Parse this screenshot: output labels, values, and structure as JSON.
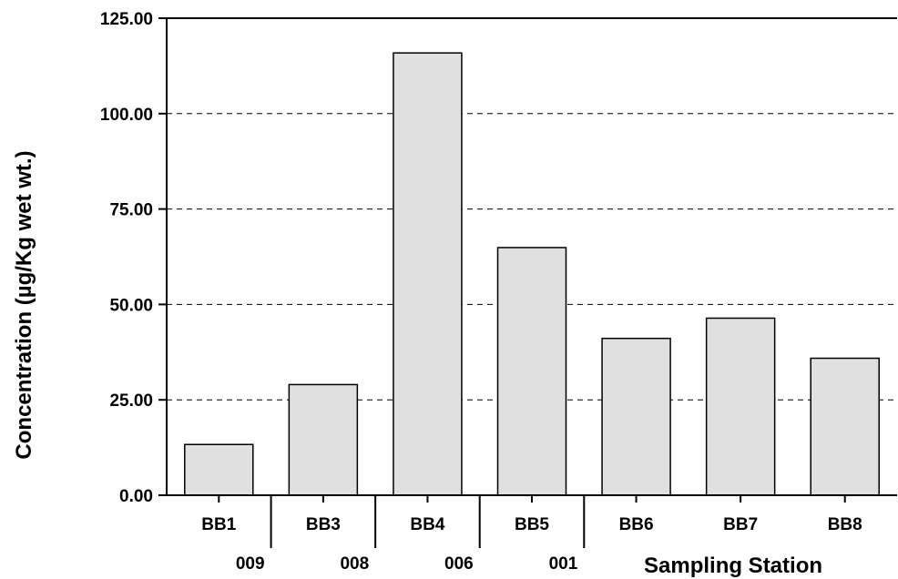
{
  "chart_data": {
    "type": "bar",
    "title": "",
    "xlabel": "Sampling Station",
    "ylabel": "Concentration (µg/Kg wet wt.)",
    "categories": [
      "BB1",
      "BB3",
      "BB4",
      "BB5",
      "BB6",
      "BB7",
      "BB8"
    ],
    "values": [
      13.3,
      29.0,
      115.9,
      64.9,
      41.1,
      46.4,
      35.9
    ],
    "group_labels": [
      "009",
      "008",
      "006",
      "001"
    ],
    "ylim": [
      0,
      125
    ],
    "yticks": [
      0,
      25,
      50,
      75,
      100,
      125
    ],
    "ytick_labels": [
      "0.00",
      "25.00",
      "50.00",
      "75.00",
      "100.00",
      "125.00"
    ],
    "grid": "horizontal dashed",
    "legend": "none",
    "bar_color": "#e0e0e0",
    "bar_edge_color": "#000000"
  }
}
